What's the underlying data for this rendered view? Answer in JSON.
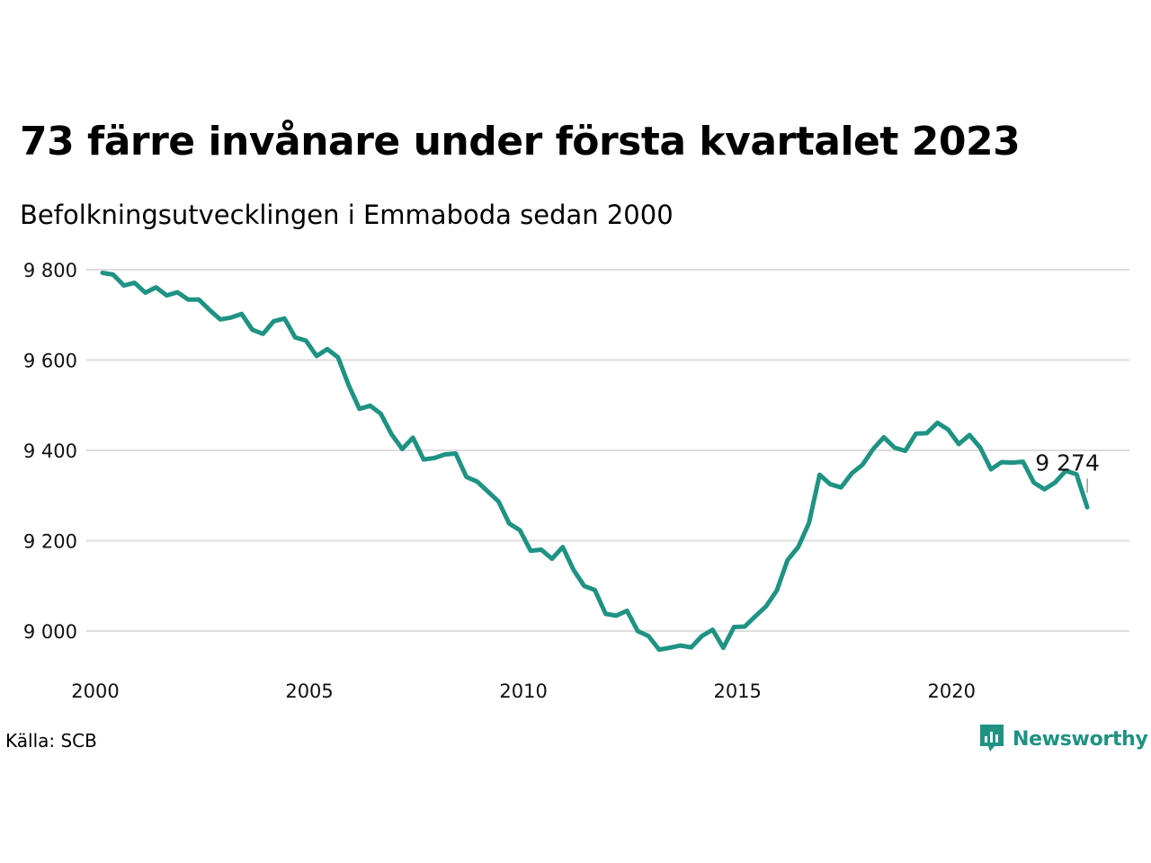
{
  "header": {
    "title": "73 färre invånare under första kvartalet 2023",
    "subtitle": "Befolkningsutvecklingen i Emmaboda sedan 2000"
  },
  "footer": {
    "source": "Källa: SCB",
    "logo_text": "Newsworthy",
    "logo_icon": "bar-chart-badge-icon"
  },
  "colors": {
    "line": "#1f9383",
    "grid": "#dddddd",
    "logo": "#1f9383"
  },
  "chart_data": {
    "type": "line",
    "x_start": 2000.0,
    "x_step": 0.25,
    "xlim": [
      2000.0,
      2023.25
    ],
    "ylim": [
      8920,
      9815
    ],
    "x_ticks": [
      {
        "value": 2000,
        "label": "2000"
      },
      {
        "value": 2005,
        "label": "2005"
      },
      {
        "value": 2010,
        "label": "2010"
      },
      {
        "value": 2015,
        "label": "2015"
      },
      {
        "value": 2020,
        "label": "2020"
      }
    ],
    "y_ticks": [
      {
        "value": 9800,
        "label": "9 800"
      },
      {
        "value": 9600,
        "label": "9 600"
      },
      {
        "value": 9400,
        "label": "9 400"
      },
      {
        "value": 9200,
        "label": "9 200"
      },
      {
        "value": 9000,
        "label": "9 000"
      }
    ],
    "grid": true,
    "values": [
      9793,
      9789,
      9765,
      9771,
      9749,
      9761,
      9743,
      9750,
      9734,
      9734,
      9711,
      9690,
      9694,
      9702,
      9667,
      9658,
      9686,
      9692,
      9650,
      9643,
      9609,
      9624,
      9606,
      9544,
      9492,
      9499,
      9481,
      9436,
      9403,
      9428,
      9380,
      9383,
      9391,
      9393,
      9341,
      9331,
      9309,
      9287,
      9238,
      9223,
      9178,
      9180,
      9160,
      9186,
      9136,
      9100,
      9091,
      9038,
      9034,
      9045,
      9000,
      8989,
      8959,
      8963,
      8968,
      8964,
      8989,
      9003,
      8963,
      9009,
      9010,
      9033,
      9055,
      9090,
      9157,
      9186,
      9239,
      9346,
      9325,
      9318,
      9349,
      9368,
      9403,
      9429,
      9406,
      9399,
      9437,
      9438,
      9461,
      9446,
      9414,
      9434,
      9406,
      9358,
      9374,
      9373,
      9375,
      9329,
      9314,
      9329,
      9355,
      9347,
      9274
    ],
    "end_label": "9 274"
  }
}
